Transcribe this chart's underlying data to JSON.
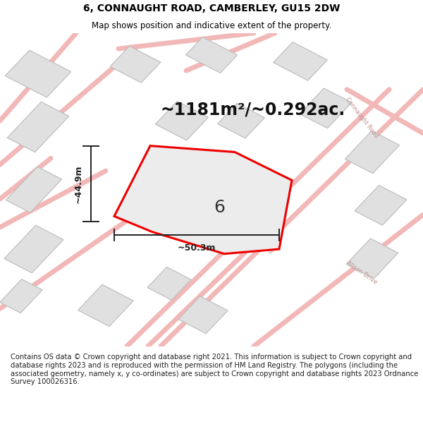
{
  "title": "6, CONNAUGHT ROAD, CAMBERLEY, GU15 2DW",
  "subtitle": "Map shows position and indicative extent of the property.",
  "footer": "Contains OS data © Crown copyright and database right 2021. This information is subject to Crown copyright and database rights 2023 and is reproduced with the permission of HM Land Registry. The polygons (including the associated geometry, namely x, y co-ordinates) are subject to Crown copyright and database rights 2023 Ordnance Survey 100026316.",
  "area_text": "~1181m²/~0.292ac.",
  "width_label": "~50.3m",
  "height_label": "~44.9m",
  "number_label": "6",
  "bg_color": "#ffffff",
  "map_bg": "#ffffff",
  "road_color": "#f2b8b8",
  "road_lw": 5,
  "building_fc": "#e0e0e0",
  "building_ec": "#bbbbbb",
  "plot_fc": "#ececec",
  "plot_ec": "#ee0000",
  "road_label_color": "#c09090",
  "title_fontsize": 10,
  "subtitle_fontsize": 8.5,
  "footer_fontsize": 7.2,
  "area_fontsize": 17,
  "label_fontsize": 9,
  "number_fontsize": 18
}
